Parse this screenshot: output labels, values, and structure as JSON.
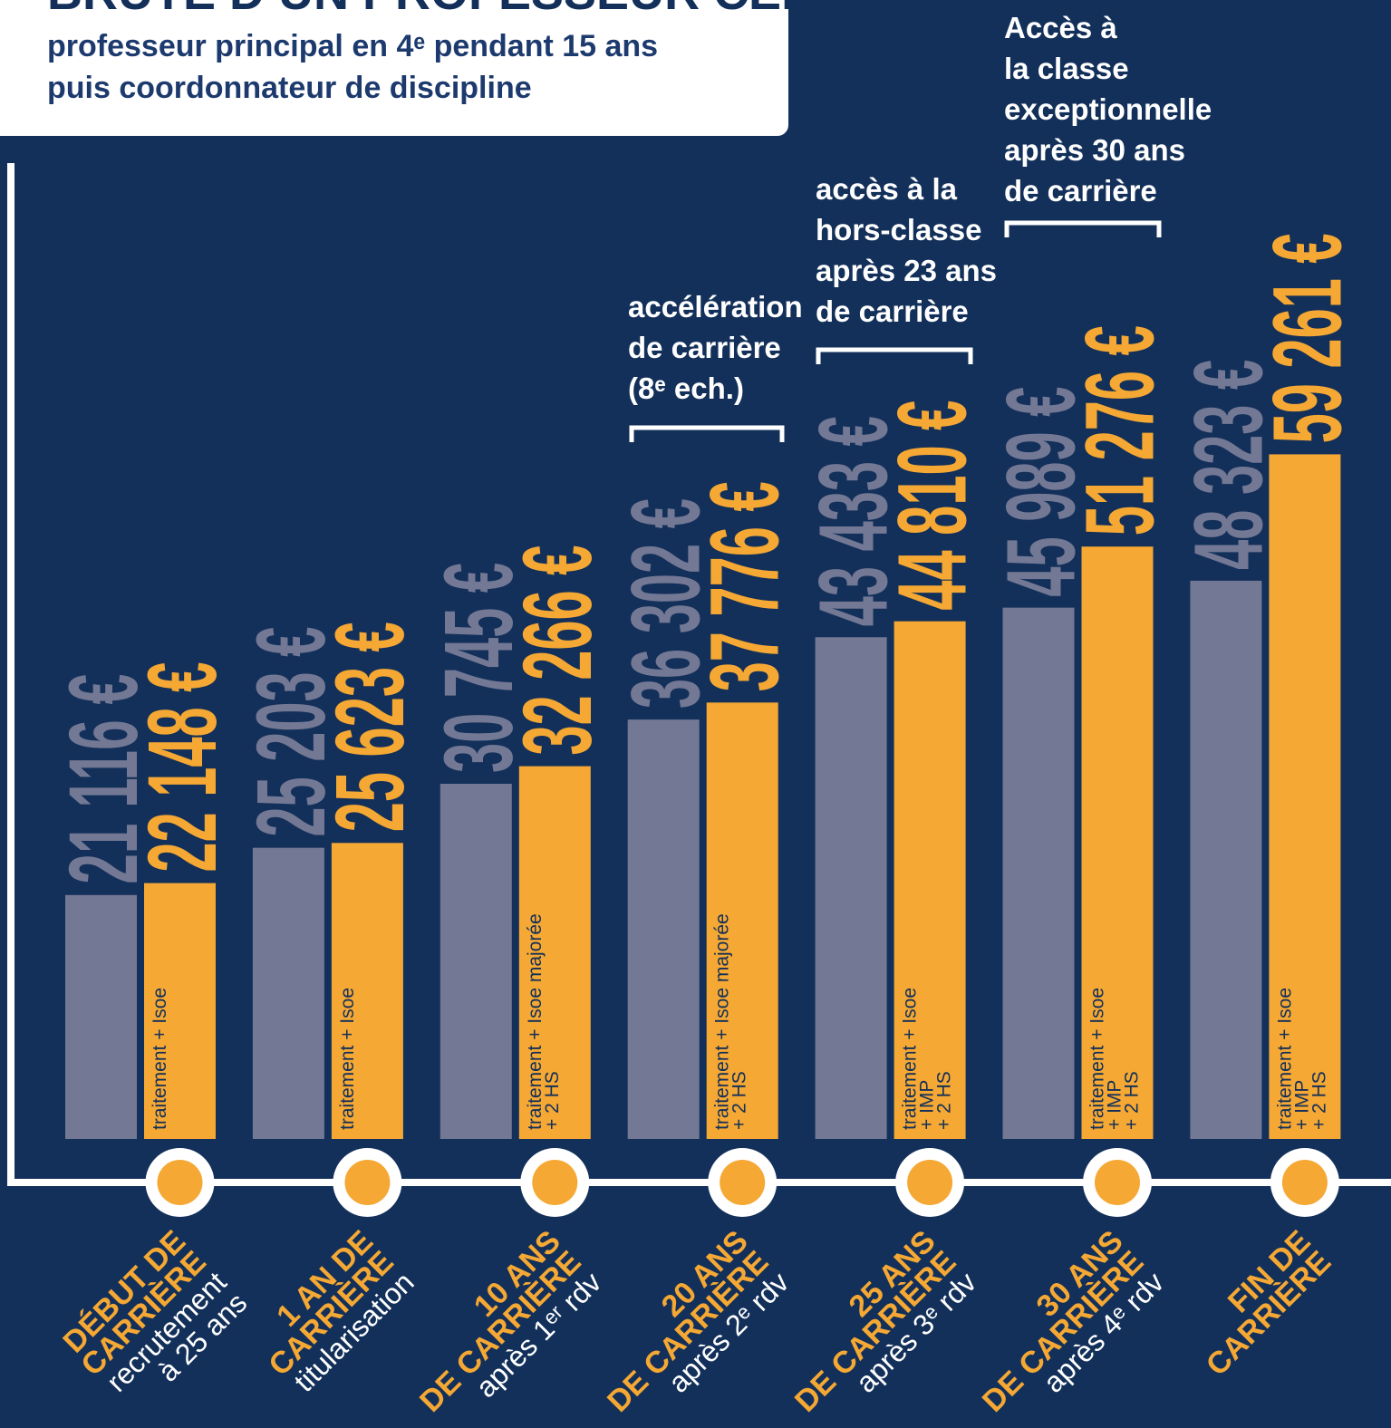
{
  "chart_data": {
    "type": "bar",
    "title": "BRUTE D’UN PROFESSEUR CERTIFIÉ,",
    "subtitle": [
      "professeur principal en 4ᵉ pendant 15 ans",
      "puis coordonnateur de discipline"
    ],
    "categories": [
      {
        "title": [
          "DÉBUT DE",
          "CARRIÈRE"
        ],
        "sub": [
          "recrutement",
          "à 25 ans"
        ]
      },
      {
        "title": [
          "1 AN DE",
          "CARRIÈRE"
        ],
        "sub": [
          "titularisation"
        ]
      },
      {
        "title": [
          "10 ANS",
          "DE CARRIÈRE"
        ],
        "sub": [
          "après 1ᵉʳ rdv"
        ]
      },
      {
        "title": [
          "20 ANS",
          "DE CARRIÈRE"
        ],
        "sub": [
          "après 2ᵉ rdv"
        ]
      },
      {
        "title": [
          "25 ANS",
          "DE CARRIÈRE"
        ],
        "sub": [
          "après 3ᵉ rdv"
        ]
      },
      {
        "title": [
          "30 ANS",
          "DE CARRIÈRE"
        ],
        "sub": [
          "après 4ᵉ rdv"
        ]
      },
      {
        "title": [
          "FIN DE",
          "CARRIÈRE"
        ],
        "sub": []
      }
    ],
    "series": [
      {
        "color": "#737894",
        "values": [
          21116,
          25203,
          30745,
          36302,
          43433,
          45989,
          48323
        ],
        "value_labels": [
          "21 116 €",
          "25 203 €",
          "30 745 €",
          "36 302 €",
          "43 433 €",
          "45 989 €",
          "48 323 €"
        ]
      },
      {
        "color": "#f5a833",
        "values": [
          22148,
          25623,
          32266,
          37776,
          44810,
          51276,
          59261
        ],
        "value_labels": [
          "22 148 €",
          "25 623 €",
          "32 266 €",
          "37 776 €",
          "44 810 €",
          "51 276 €",
          "59 261 €"
        ],
        "notes": [
          [
            "traitement + Isoe"
          ],
          [
            "traitement + Isoe"
          ],
          [
            "traitement + Isoe majorée",
            "+ 2 HS"
          ],
          [
            "traitement + Isoe  majorée",
            "+ 2 HS"
          ],
          [
            "traitement + Isoe",
            "+ IMP",
            "+ 2 HS"
          ],
          [
            "traitement + Isoe",
            "+ IMP",
            "+ 2 HS"
          ],
          [
            "traitement + Isoe",
            "+ IMP",
            "+ 2 HS"
          ]
        ]
      }
    ],
    "annotations": [
      [
        "accélération",
        "de carrière",
        "(8ᵉ ech.)"
      ],
      [
        "accès à la",
        "hors-classe",
        "après 23 ans",
        "de carrière"
      ],
      [
        "Accès à",
        "la classe",
        "exceptionnelle",
        "après 30 ans",
        "de carrière"
      ]
    ]
  }
}
